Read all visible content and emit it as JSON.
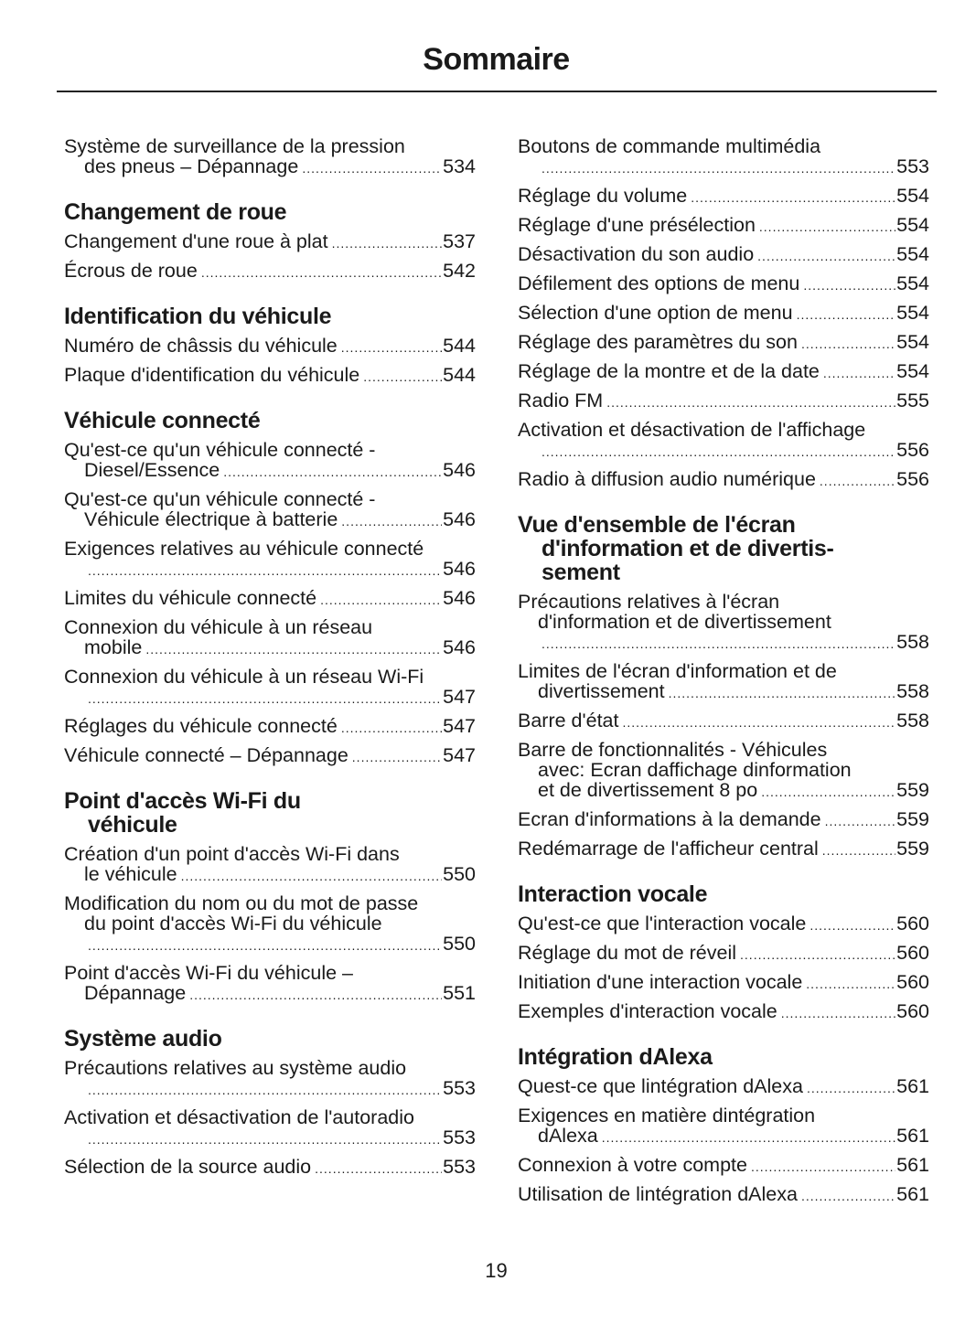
{
  "title": "Sommaire",
  "page_number": "19",
  "columns": [
    [
      {
        "type": "entry",
        "lines": [
          "Système de surveillance de la pression",
          "des pneus – Dépannage"
        ],
        "page": "534"
      },
      {
        "type": "heading",
        "lines": [
          "Changement de roue"
        ]
      },
      {
        "type": "entry",
        "lines": [
          "Changement d'une roue à plat"
        ],
        "page": "537"
      },
      {
        "type": "entry",
        "lines": [
          "Écrous de roue"
        ],
        "page": "542"
      },
      {
        "type": "heading",
        "lines": [
          "Identification du véhicule"
        ]
      },
      {
        "type": "entry",
        "lines": [
          "Numéro de châssis du véhicule"
        ],
        "page": "544"
      },
      {
        "type": "entry",
        "lines": [
          "Plaque d'identification du véhicule"
        ],
        "page": "544"
      },
      {
        "type": "heading",
        "lines": [
          "Véhicule connecté"
        ]
      },
      {
        "type": "entry",
        "lines": [
          "Qu'est-ce qu'un véhicule connecté -",
          "Diesel/Essence"
        ],
        "page": "546"
      },
      {
        "type": "entry",
        "lines": [
          "Qu'est-ce qu'un véhicule connecté -",
          "Véhicule électrique à batterie"
        ],
        "page": "546"
      },
      {
        "type": "entry",
        "lines": [
          "Exigences relatives au véhicule connecté",
          ""
        ],
        "page": "546"
      },
      {
        "type": "entry",
        "lines": [
          "Limites du véhicule connecté"
        ],
        "page": "546"
      },
      {
        "type": "entry",
        "lines": [
          "Connexion du véhicule à un réseau",
          "mobile"
        ],
        "page": "546"
      },
      {
        "type": "entry",
        "lines": [
          "Connexion du véhicule à un réseau Wi-Fi",
          ""
        ],
        "page": "547"
      },
      {
        "type": "entry",
        "lines": [
          "Réglages du véhicule connecté"
        ],
        "page": "547"
      },
      {
        "type": "entry",
        "lines": [
          "Véhicule connecté – Dépannage"
        ],
        "page": "547"
      },
      {
        "type": "heading",
        "lines": [
          "Point d'accès Wi-Fi du",
          "véhicule"
        ]
      },
      {
        "type": "entry",
        "lines": [
          "Création d'un point d'accès Wi-Fi dans",
          "le véhicule"
        ],
        "page": "550"
      },
      {
        "type": "entry",
        "lines": [
          "Modification du nom ou du mot de passe",
          "du point d'accès Wi-Fi du véhicule",
          ""
        ],
        "page": "550"
      },
      {
        "type": "entry",
        "lines": [
          "Point d'accès Wi-Fi du véhicule –",
          "Dépannage"
        ],
        "page": "551"
      },
      {
        "type": "heading",
        "lines": [
          "Système audio"
        ]
      },
      {
        "type": "entry",
        "lines": [
          "Précautions relatives au système audio",
          ""
        ],
        "page": "553"
      },
      {
        "type": "entry",
        "lines": [
          "Activation et désactivation de l'autoradio",
          ""
        ],
        "page": "553"
      },
      {
        "type": "entry",
        "lines": [
          "Sélection de la source audio"
        ],
        "page": "553"
      }
    ],
    [
      {
        "type": "entry",
        "lines": [
          "Boutons de commande multimédia",
          ""
        ],
        "page": "553"
      },
      {
        "type": "entry",
        "lines": [
          "Réglage du volume"
        ],
        "page": "554"
      },
      {
        "type": "entry",
        "lines": [
          "Réglage d'une présélection"
        ],
        "page": "554"
      },
      {
        "type": "entry",
        "lines": [
          "Désactivation du son audio"
        ],
        "page": "554"
      },
      {
        "type": "entry",
        "lines": [
          "Défilement des options de menu"
        ],
        "page": "554"
      },
      {
        "type": "entry",
        "lines": [
          "Sélection d'une option de menu"
        ],
        "page": "554"
      },
      {
        "type": "entry",
        "lines": [
          "Réglage des paramètres du son"
        ],
        "page": "554"
      },
      {
        "type": "entry",
        "lines": [
          "Réglage de la montre et de la date"
        ],
        "page": "554"
      },
      {
        "type": "entry",
        "lines": [
          "Radio FM"
        ],
        "page": "555"
      },
      {
        "type": "entry",
        "lines": [
          "Activation et désactivation de l'affichage",
          ""
        ],
        "page": "556"
      },
      {
        "type": "entry",
        "lines": [
          "Radio à diffusion audio numérique"
        ],
        "page": "556"
      },
      {
        "type": "heading",
        "lines": [
          "Vue d'ensemble de l'écran",
          "d'information et de divertis-",
          "sement"
        ]
      },
      {
        "type": "entry",
        "lines": [
          "Précautions relatives à l'écran",
          "d'information et de divertissement",
          ""
        ],
        "page": "558"
      },
      {
        "type": "entry",
        "lines": [
          "Limites de l'écran d'information et de",
          "divertissement"
        ],
        "page": "558"
      },
      {
        "type": "entry",
        "lines": [
          "Barre d'état"
        ],
        "page": "558"
      },
      {
        "type": "entry",
        "lines": [
          "Barre de fonctionnalités - Véhicules",
          "avec: Ecran daffichage dinformation",
          "et de divertissement 8 po"
        ],
        "page": "559"
      },
      {
        "type": "entry",
        "lines": [
          "Ecran d'informations à la demande"
        ],
        "page": "559"
      },
      {
        "type": "entry",
        "lines": [
          "Redémarrage de l'afficheur central"
        ],
        "page": "559"
      },
      {
        "type": "heading",
        "lines": [
          "Interaction vocale"
        ]
      },
      {
        "type": "entry",
        "lines": [
          "Qu'est-ce que l'interaction vocale"
        ],
        "page": "560"
      },
      {
        "type": "entry",
        "lines": [
          "Réglage du mot de réveil"
        ],
        "page": "560"
      },
      {
        "type": "entry",
        "lines": [
          "Initiation d'une interaction vocale"
        ],
        "page": "560"
      },
      {
        "type": "entry",
        "lines": [
          "Exemples d'interaction vocale"
        ],
        "page": "560"
      },
      {
        "type": "heading",
        "lines": [
          "Intégration dAlexa"
        ]
      },
      {
        "type": "entry",
        "lines": [
          "Quest-ce que lintégration dAlexa"
        ],
        "page": "561"
      },
      {
        "type": "entry",
        "lines": [
          "Exigences en matière dintégration",
          "dAlexa"
        ],
        "page": "561"
      },
      {
        "type": "entry",
        "lines": [
          "Connexion à votre compte"
        ],
        "page": "561"
      },
      {
        "type": "entry",
        "lines": [
          "Utilisation de lintégration dAlexa"
        ],
        "page": "561"
      }
    ]
  ]
}
